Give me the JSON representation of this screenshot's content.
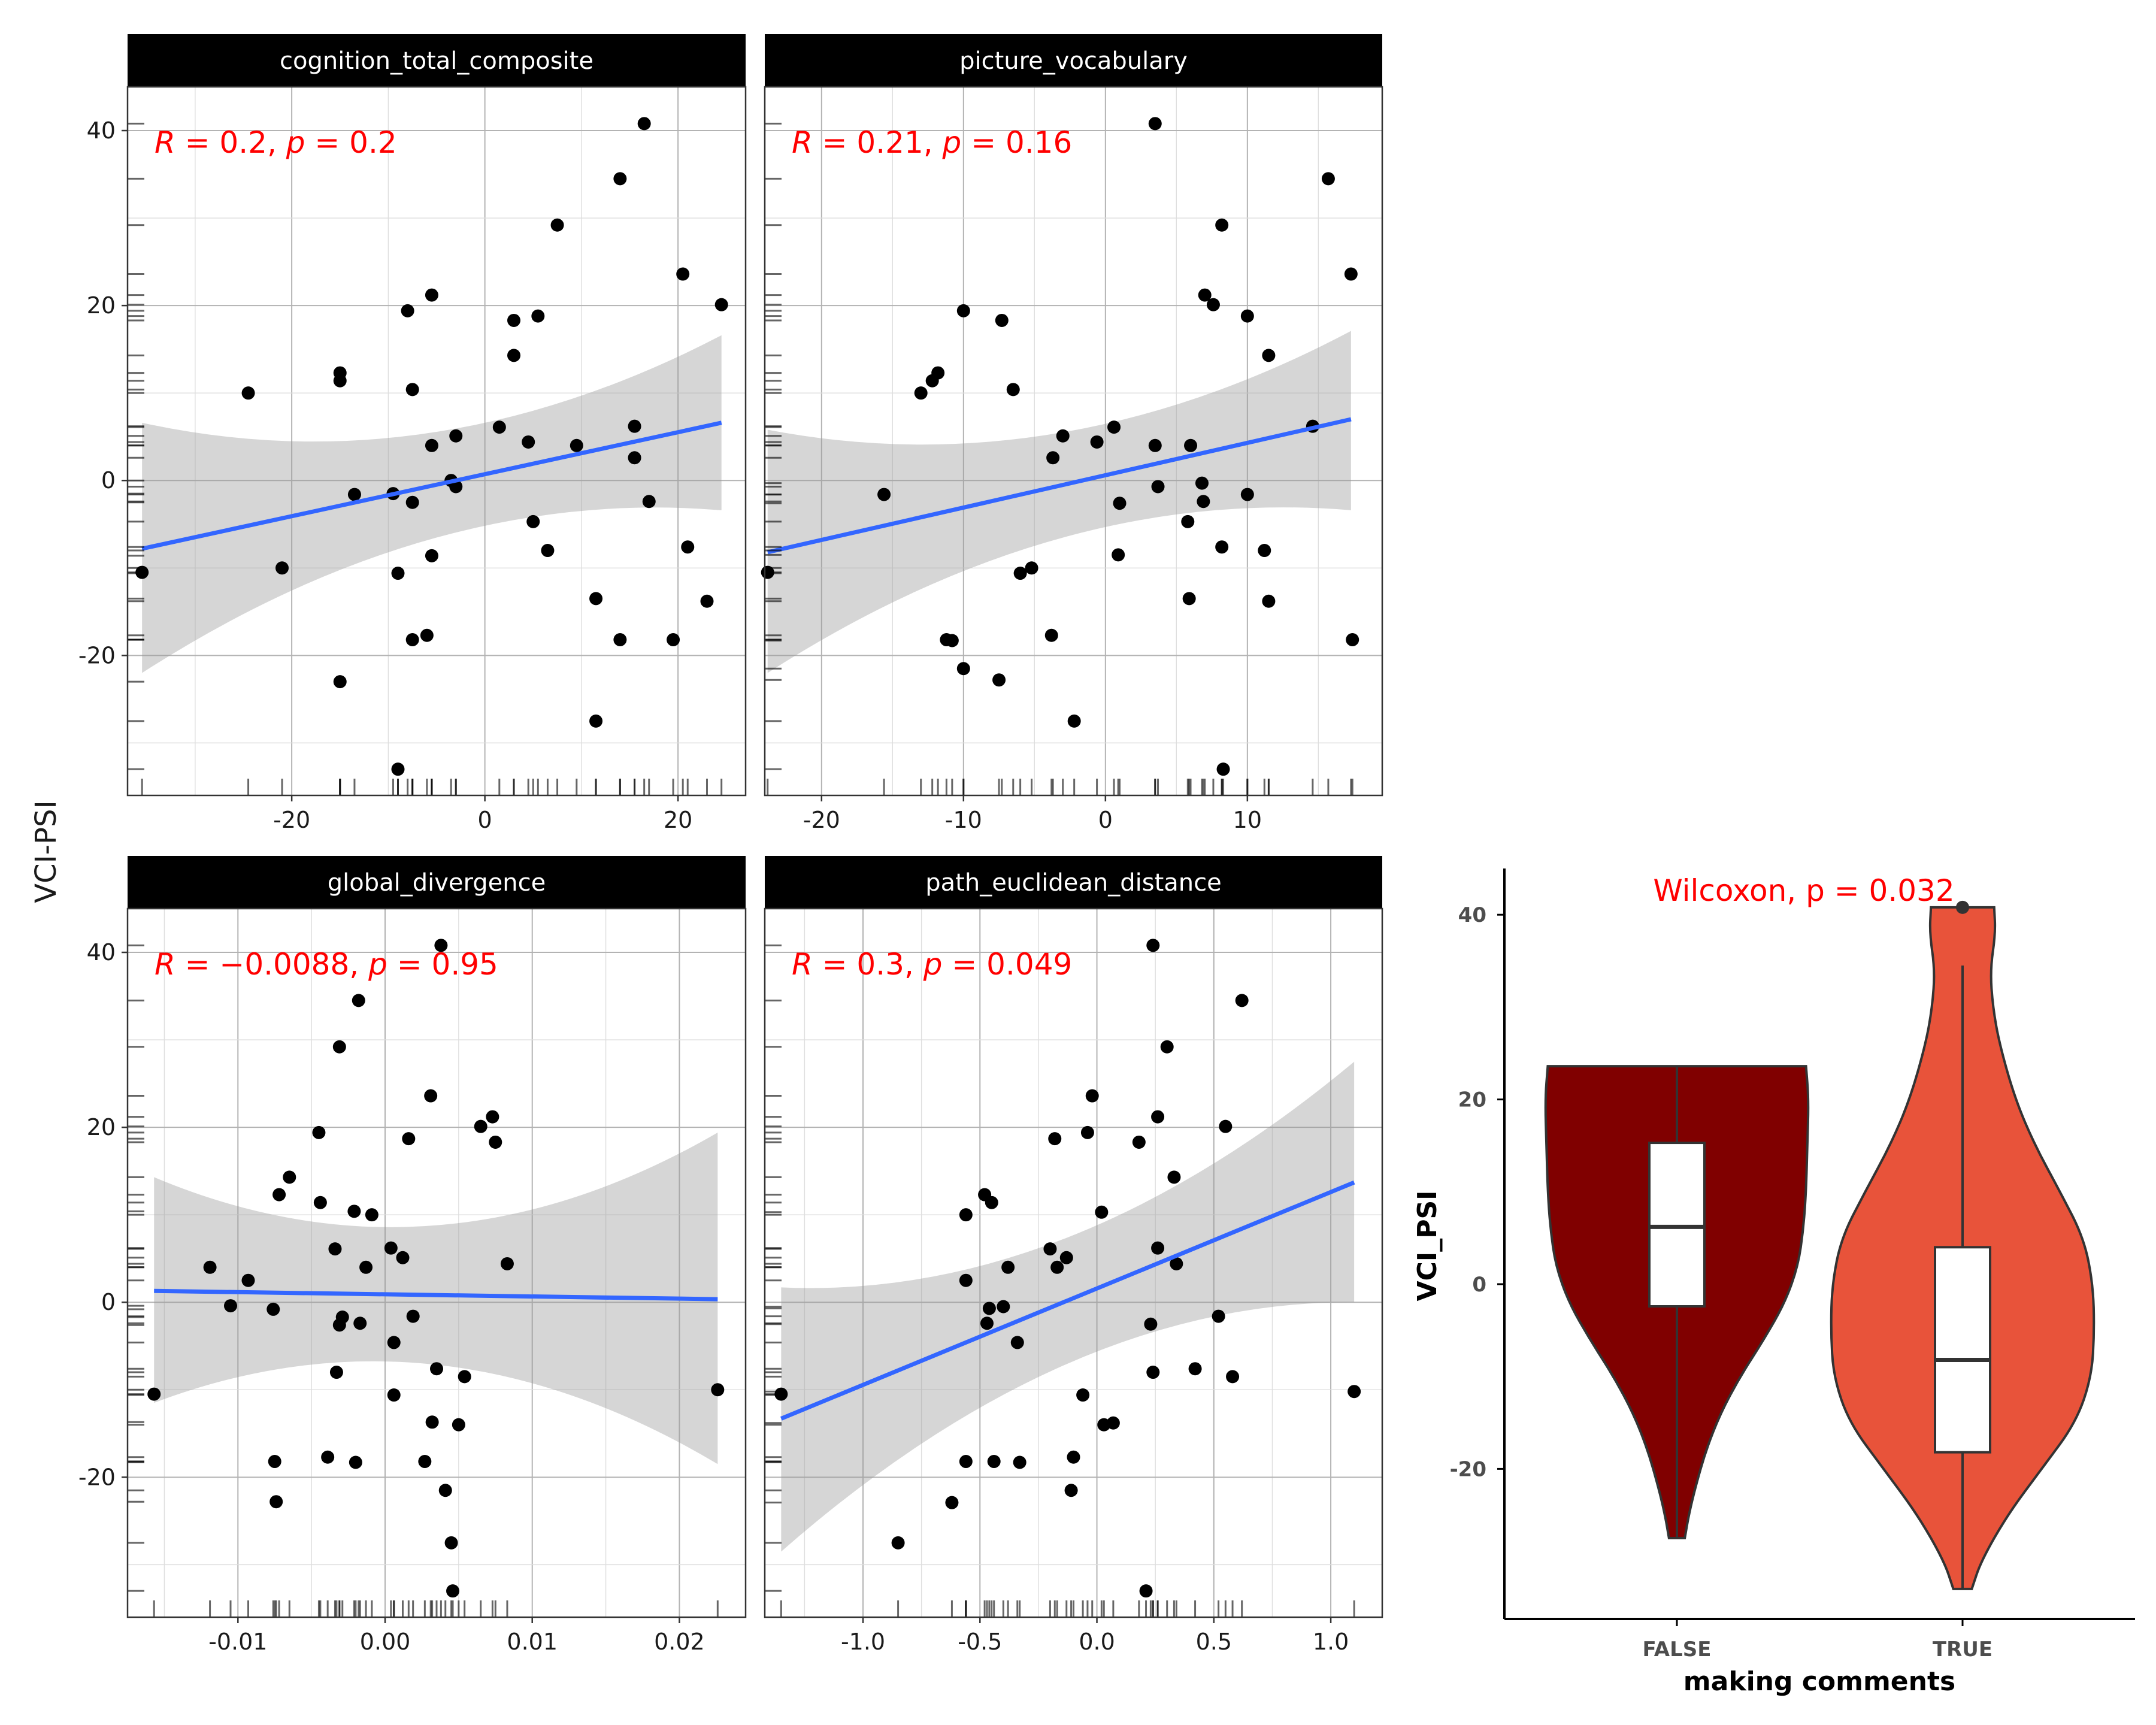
{
  "chart_data": [
    {
      "type": "scatter",
      "title": "cognition_total_composite",
      "ylabel": "VCI-PSI",
      "xlim": [
        -37,
        27
      ],
      "ylim": [
        -36,
        45
      ],
      "x_ticks": [
        -20,
        0,
        20
      ],
      "x_tick_labels": [
        "-20",
        "0",
        "20"
      ],
      "y_ticks": [
        -20,
        0,
        20,
        40
      ],
      "y_tick_labels": [
        "-20",
        "0",
        "20",
        "40"
      ],
      "annotation": {
        "r_label": "R",
        "r_value": " = 0.2, ",
        "p_label": "p",
        "p_value": " = 0.2"
      },
      "fit": {
        "x0": -35.5,
        "y0": -7.8,
        "x1": 24.5,
        "y1": 6.6,
        "lo0": -22,
        "hi0": 6.6,
        "lo1": -3.4,
        "hi1": 16.6
      },
      "points": [
        [
          -35.5,
          -10.5
        ],
        [
          -24.5,
          10
        ],
        [
          -21,
          -10
        ],
        [
          -15,
          12.3
        ],
        [
          -15,
          11.4
        ],
        [
          -15,
          -23
        ],
        [
          -13.5,
          -1.6
        ],
        [
          -9.5,
          -1.5
        ],
        [
          -9,
          -33
        ],
        [
          -9,
          -10.6
        ],
        [
          -8,
          19.4
        ],
        [
          -7.5,
          -2.5
        ],
        [
          -7.5,
          10.4
        ],
        [
          -7.5,
          -18.2
        ],
        [
          -6,
          -17.7
        ],
        [
          -5.5,
          21.2
        ],
        [
          -5.5,
          4
        ],
        [
          -5.5,
          -8.6
        ],
        [
          -3.5,
          0
        ],
        [
          -3,
          5.1
        ],
        [
          -3,
          -0.7
        ],
        [
          1.5,
          6.1
        ],
        [
          3,
          18.3
        ],
        [
          3,
          14.3
        ],
        [
          4.5,
          4.4
        ],
        [
          5,
          -4.7
        ],
        [
          5.5,
          18.8
        ],
        [
          6.5,
          -8
        ],
        [
          7.5,
          29.2
        ],
        [
          9.5,
          4
        ],
        [
          11.5,
          -13.5
        ],
        [
          11.5,
          -27.5
        ],
        [
          14,
          34.5
        ],
        [
          14,
          -18.2
        ],
        [
          15.5,
          2.6
        ],
        [
          15.5,
          6.2
        ],
        [
          16.5,
          40.8
        ],
        [
          17,
          -2.4
        ],
        [
          19.5,
          -18.2
        ],
        [
          20.5,
          23.6
        ],
        [
          21,
          -7.6
        ],
        [
          23,
          -13.8
        ],
        [
          24.5,
          20.1
        ]
      ]
    },
    {
      "type": "scatter",
      "title": "picture_vocabulary",
      "xlim": [
        -24,
        19.5
      ],
      "ylim": [
        -36,
        45
      ],
      "x_ticks": [
        -20,
        -10,
        0,
        10
      ],
      "x_tick_labels": [
        "-20",
        "-10",
        "0",
        "10"
      ],
      "annotation": {
        "r_label": "R",
        "r_value": " = 0.21, ",
        "p_label": "p",
        "p_value": " = 0.16"
      },
      "fit": {
        "x0": -23.8,
        "y0": -8.2,
        "x1": 17.3,
        "y1": 7,
        "lo0": -22,
        "hi0": 5.8,
        "lo1": -3.4,
        "hi1": 17.1
      },
      "points": [
        [
          -23.8,
          -10.5
        ],
        [
          -15.6,
          -1.6
        ],
        [
          -13,
          10
        ],
        [
          -12.2,
          11.4
        ],
        [
          -11.8,
          12.3
        ],
        [
          -11.2,
          -18.2
        ],
        [
          -10.8,
          -18.3
        ],
        [
          -10,
          19.4
        ],
        [
          -10,
          -21.5
        ],
        [
          -7.5,
          -22.8
        ],
        [
          -7.3,
          18.3
        ],
        [
          -6.5,
          10.4
        ],
        [
          -6,
          -10.6
        ],
        [
          -5.2,
          -10
        ],
        [
          -3.8,
          -17.7
        ],
        [
          -3.7,
          2.6
        ],
        [
          -3,
          5.1
        ],
        [
          -2.2,
          -27.5
        ],
        [
          -0.6,
          4.4
        ],
        [
          0.6,
          6.1
        ],
        [
          0.9,
          -8.5
        ],
        [
          1,
          -2.6
        ],
        [
          3.5,
          40.8
        ],
        [
          3.5,
          4
        ],
        [
          3.7,
          -0.7
        ],
        [
          5.8,
          -4.7
        ],
        [
          5.9,
          -13.5
        ],
        [
          6,
          4
        ],
        [
          6.8,
          -0.3
        ],
        [
          6.9,
          -2.4
        ],
        [
          7,
          21.2
        ],
        [
          7.6,
          20.1
        ],
        [
          8.2,
          29.2
        ],
        [
          8.2,
          -7.6
        ],
        [
          8.3,
          -33
        ],
        [
          10,
          18.8
        ],
        [
          10,
          -1.6
        ],
        [
          11.2,
          -8
        ],
        [
          11.5,
          14.3
        ],
        [
          11.5,
          -13.8
        ],
        [
          14.6,
          6.2
        ],
        [
          15.7,
          34.5
        ],
        [
          17.3,
          23.6
        ],
        [
          17.4,
          -18.2
        ]
      ]
    },
    {
      "type": "scatter",
      "title": "global_divergence",
      "xlim": [
        -0.0175,
        0.0245
      ],
      "ylim": [
        -36,
        45
      ],
      "x_ticks": [
        -0.01,
        0,
        0.01,
        0.02
      ],
      "x_tick_labels": [
        "-0.01",
        "0.00",
        "0.01",
        "0.02"
      ],
      "y_ticks": [
        -20,
        0,
        20,
        40
      ],
      "y_tick_labels": [
        "-20",
        "0",
        "20",
        "40"
      ],
      "annotation": {
        "r_label": "R",
        "r_value": " = −0.0088, ",
        "p_label": "p",
        "p_value": " = 0.95"
      },
      "fit": {
        "x0": -0.0157,
        "y0": 1.3,
        "x1": 0.0226,
        "y1": 0.35,
        "lo0": -11.5,
        "hi0": 14.3,
        "lo1": -18.5,
        "hi1": 19.4
      },
      "points": [
        [
          -0.0157,
          -10.5
        ],
        [
          -0.0119,
          4
        ],
        [
          -0.0105,
          -0.4
        ],
        [
          -0.0093,
          2.5
        ],
        [
          -0.0076,
          -0.8
        ],
        [
          -0.0075,
          -18.2
        ],
        [
          -0.0074,
          -22.8
        ],
        [
          -0.0072,
          12.3
        ],
        [
          -0.0065,
          14.3
        ],
        [
          -0.0045,
          19.4
        ],
        [
          -0.0044,
          11.4
        ],
        [
          -0.0039,
          -17.7
        ],
        [
          -0.0034,
          6.1
        ],
        [
          -0.0033,
          -8
        ],
        [
          -0.0031,
          29.2
        ],
        [
          -0.0031,
          -2.6
        ],
        [
          -0.0029,
          -1.7
        ],
        [
          -0.0021,
          10.4
        ],
        [
          -0.002,
          -18.3
        ],
        [
          -0.0018,
          34.5
        ],
        [
          -0.0017,
          -2.4
        ],
        [
          -0.0013,
          4
        ],
        [
          -0.0009,
          10
        ],
        [
          0.0004,
          6.2
        ],
        [
          0.0006,
          -10.6
        ],
        [
          0.0006,
          -4.6
        ],
        [
          0.0012,
          5.1
        ],
        [
          0.0016,
          18.7
        ],
        [
          0.0019,
          -1.6
        ],
        [
          0.0027,
          -18.2
        ],
        [
          0.0031,
          23.6
        ],
        [
          0.0032,
          -13.7
        ],
        [
          0.0035,
          -7.6
        ],
        [
          0.0038,
          40.8
        ],
        [
          0.0041,
          -21.5
        ],
        [
          0.0045,
          -27.5
        ],
        [
          0.0046,
          -33
        ],
        [
          0.005,
          -14
        ],
        [
          0.0054,
          -8.5
        ],
        [
          0.0065,
          20.1
        ],
        [
          0.0073,
          21.2
        ],
        [
          0.0075,
          18.3
        ],
        [
          0.0083,
          4.4
        ],
        [
          0.0226,
          -10
        ]
      ]
    },
    {
      "type": "scatter",
      "title": "path_euclidean_distance",
      "xlim": [
        -1.42,
        1.22
      ],
      "ylim": [
        -36,
        45
      ],
      "x_ticks": [
        -1.0,
        -0.5,
        0.0,
        0.5,
        1.0
      ],
      "x_tick_labels": [
        "-1.0",
        "-0.5",
        "0.0",
        "0.5",
        "1.0"
      ],
      "annotation": {
        "r_label": "R",
        "r_value": " = 0.3, ",
        "p_label": "p",
        "p_value": " = 0.049"
      },
      "fit": {
        "x0": -1.35,
        "y0": -13.3,
        "x1": 1.1,
        "y1": 13.7,
        "lo0": -28.5,
        "hi0": 1.7,
        "lo1": 0,
        "hi1": 27.5
      },
      "points": [
        [
          -1.35,
          -10.5
        ],
        [
          -0.85,
          -27.5
        ],
        [
          -0.62,
          -22.9
        ],
        [
          -0.56,
          10
        ],
        [
          -0.56,
          2.5
        ],
        [
          -0.56,
          -18.2
        ],
        [
          -0.48,
          12.3
        ],
        [
          -0.47,
          -2.4
        ],
        [
          -0.46,
          -0.7
        ],
        [
          -0.45,
          11.4
        ],
        [
          -0.44,
          -18.2
        ],
        [
          -0.4,
          -0.5
        ],
        [
          -0.38,
          4
        ],
        [
          -0.34,
          -4.6
        ],
        [
          -0.33,
          -18.3
        ],
        [
          -0.2,
          6.1
        ],
        [
          -0.18,
          18.7
        ],
        [
          -0.17,
          4
        ],
        [
          -0.13,
          5.1
        ],
        [
          -0.1,
          -17.7
        ],
        [
          -0.11,
          -21.5
        ],
        [
          -0.06,
          -10.6
        ],
        [
          -0.04,
          19.4
        ],
        [
          -0.02,
          23.6
        ],
        [
          0.02,
          10.3
        ],
        [
          0.03,
          -14
        ],
        [
          0.07,
          -13.8
        ],
        [
          0.18,
          18.3
        ],
        [
          0.21,
          -33
        ],
        [
          0.23,
          -2.5
        ],
        [
          0.24,
          40.8
        ],
        [
          0.24,
          -8
        ],
        [
          0.26,
          6.2
        ],
        [
          0.26,
          21.2
        ],
        [
          0.3,
          29.2
        ],
        [
          0.33,
          14.3
        ],
        [
          0.34,
          4.4
        ],
        [
          0.42,
          -7.6
        ],
        [
          0.52,
          -1.6
        ],
        [
          0.55,
          20.1
        ],
        [
          0.58,
          -8.5
        ],
        [
          0.62,
          34.5
        ],
        [
          1.1,
          -10.2
        ]
      ]
    },
    {
      "type": "violin",
      "xlabel": "making comments",
      "ylabel": "VCI_PSI",
      "annotation": "Wilcoxon, p = 0.032",
      "categories": [
        "FALSE",
        "TRUE"
      ],
      "ylim": [
        -36,
        45
      ],
      "y_ticks": [
        -20,
        0,
        20,
        40
      ],
      "y_tick_labels": [
        "-20",
        "0",
        "20",
        "40"
      ],
      "groups": [
        {
          "name": "FALSE",
          "fill": "#800000",
          "box": {
            "q1": -2.4,
            "median": 6.2,
            "q3": 15.3,
            "whisker_low": -27.5,
            "whisker_high": 23.6
          },
          "density": [
            [
              23.6,
              0.98
            ],
            [
              20,
              1.0
            ],
            [
              15,
              0.99
            ],
            [
              10,
              0.98
            ],
            [
              6,
              0.96
            ],
            [
              2,
              0.92
            ],
            [
              -2,
              0.82
            ],
            [
              -6,
              0.66
            ],
            [
              -10,
              0.48
            ],
            [
              -14,
              0.33
            ],
            [
              -18,
              0.22
            ],
            [
              -22,
              0.14
            ],
            [
              -25,
              0.09
            ],
            [
              -27.5,
              0.06
            ]
          ]
        },
        {
          "name": "TRUE",
          "fill": "#e8533a",
          "box": {
            "q1": -18.2,
            "median": -8.2,
            "q3": 4,
            "whisker_low": -33,
            "whisker_high": 34.5
          },
          "outliers": [
            40.8
          ],
          "density": [
            [
              40.8,
              0.24
            ],
            [
              38,
              0.25
            ],
            [
              34,
              0.21
            ],
            [
              30,
              0.23
            ],
            [
              26,
              0.28
            ],
            [
              20,
              0.4
            ],
            [
              15,
              0.55
            ],
            [
              10,
              0.74
            ],
            [
              5,
              0.92
            ],
            [
              0,
              0.99
            ],
            [
              -5,
              1.0
            ],
            [
              -10,
              0.98
            ],
            [
              -15,
              0.86
            ],
            [
              -20,
              0.6
            ],
            [
              -25,
              0.34
            ],
            [
              -30,
              0.14
            ],
            [
              -33,
              0.07
            ]
          ]
        }
      ]
    }
  ]
}
